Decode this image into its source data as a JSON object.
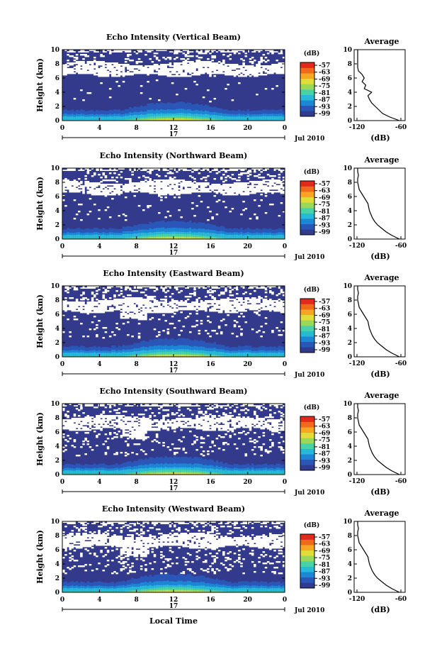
{
  "figure": {
    "x_axis_common_label": "Local Time",
    "date_label": "Jul 2010",
    "day_label": "17",
    "average_title": "Average",
    "average_xlabel": "(dB)",
    "colorbar_unit": "(dB)",
    "height_label": "Height (km)"
  },
  "colors": {
    "background_echo": "#333a8c",
    "no_data": "#ffffff",
    "colormap": [
      "#2f3c8f",
      "#2a56b8",
      "#1e86d6",
      "#28b9d8",
      "#49d1a8",
      "#9ad85a",
      "#e0dc3a",
      "#f6a623",
      "#f06a1c",
      "#e02a1c"
    ]
  },
  "chart_data": [
    {
      "type": "heatmap",
      "title": "Echo Intensity (Vertical Beam)",
      "ylabel": "Height (km)",
      "xlim": [
        0,
        24
      ],
      "ylim": [
        0,
        10
      ],
      "x_ticks": [
        "0",
        "4",
        "8",
        "12",
        "16",
        "20",
        "0"
      ],
      "y_ticks": [
        "0",
        "2",
        "4",
        "6",
        "8",
        "10"
      ],
      "colorbar": {
        "unit": "(dB)",
        "ticks": [
          "-57",
          "-63",
          "-69",
          "-75",
          "-81",
          "-87",
          "-93",
          "-99"
        ]
      },
      "profile": {
        "title": "Average",
        "xlabel": "(dB)",
        "x_ticks": [
          "-120",
          "-60"
        ],
        "xlim": [
          -120,
          -60
        ],
        "height": [
          0,
          0.5,
          1,
          1.5,
          2,
          2.5,
          3,
          3.5,
          4,
          4.5,
          5,
          5.5,
          6,
          6.5,
          7,
          7.5,
          8,
          8.5,
          9,
          9.5,
          10
        ],
        "value": [
          -62,
          -75,
          -85,
          -90,
          -95,
          -100,
          -103,
          -105,
          -100,
          -110,
          -108,
          -113,
          -110,
          -113,
          -118,
          -119,
          -119,
          -119,
          -119,
          -119,
          -119
        ]
      }
    },
    {
      "type": "heatmap",
      "title": "Echo Intensity (Northward Beam)",
      "ylabel": "Height (km)",
      "xlim": [
        0,
        24
      ],
      "ylim": [
        0,
        10
      ],
      "x_ticks": [
        "0",
        "4",
        "8",
        "12",
        "16",
        "20",
        "0"
      ],
      "y_ticks": [
        "0",
        "2",
        "4",
        "6",
        "8",
        "10"
      ],
      "colorbar": {
        "unit": "(dB)",
        "ticks": [
          "-57",
          "-63",
          "-69",
          "-75",
          "-81",
          "-87",
          "-93",
          "-99"
        ]
      },
      "profile": {
        "title": "Average",
        "xlabel": "(dB)",
        "x_ticks": [
          "-120",
          "-60"
        ],
        "xlim": [
          -120,
          -60
        ],
        "height": [
          0,
          0.5,
          1,
          1.5,
          2,
          2.5,
          3,
          3.5,
          4,
          4.5,
          5,
          5.5,
          6,
          6.5,
          7,
          7.5,
          8,
          8.5,
          9,
          9.5,
          10
        ],
        "value": [
          -62,
          -72,
          -80,
          -86,
          -92,
          -96,
          -99,
          -101,
          -103,
          -104,
          -105,
          -108,
          -111,
          -114,
          -117,
          -118,
          -119,
          -119,
          -118,
          -119,
          -119
        ]
      }
    },
    {
      "type": "heatmap",
      "title": "Echo Intensity (Eastward Beam)",
      "ylabel": "Height (km)",
      "xlim": [
        0,
        24
      ],
      "ylim": [
        0,
        10
      ],
      "x_ticks": [
        "0",
        "4",
        "8",
        "12",
        "16",
        "20",
        "0"
      ],
      "y_ticks": [
        "0",
        "2",
        "4",
        "6",
        "8",
        "10"
      ],
      "colorbar": {
        "unit": "(dB)",
        "ticks": [
          "-57",
          "-63",
          "-69",
          "-75",
          "-81",
          "-87",
          "-93",
          "-99"
        ]
      },
      "profile": {
        "title": "Average",
        "xlabel": "(dB)",
        "x_ticks": [
          "-120",
          "-60"
        ],
        "xlim": [
          -120,
          -60
        ],
        "height": [
          0,
          0.5,
          1,
          1.5,
          2,
          2.5,
          3,
          3.5,
          4,
          4.5,
          5,
          5.5,
          6,
          6.5,
          7,
          7.5,
          8,
          8.5,
          9,
          9.5,
          10
        ],
        "value": [
          -62,
          -72,
          -80,
          -86,
          -92,
          -96,
          -99,
          -101,
          -103,
          -104,
          -105,
          -108,
          -111,
          -114,
          -117,
          -118,
          -119,
          -119,
          -118,
          -119,
          -119
        ]
      }
    },
    {
      "type": "heatmap",
      "title": "Echo Intensity (Southward Beam)",
      "ylabel": "Height (km)",
      "xlim": [
        0,
        24
      ],
      "ylim": [
        0,
        10
      ],
      "x_ticks": [
        "0",
        "4",
        "8",
        "12",
        "16",
        "20",
        "0"
      ],
      "y_ticks": [
        "0",
        "2",
        "4",
        "6",
        "8",
        "10"
      ],
      "colorbar": {
        "unit": "(dB)",
        "ticks": [
          "-57",
          "-63",
          "-69",
          "-75",
          "-81",
          "-87",
          "-93",
          "-99"
        ]
      },
      "profile": {
        "title": "Average",
        "xlabel": "(dB)",
        "x_ticks": [
          "-120",
          "-60"
        ],
        "xlim": [
          -120,
          -60
        ],
        "height": [
          0,
          0.5,
          1,
          1.5,
          2,
          2.5,
          3,
          3.5,
          4,
          4.5,
          5,
          5.5,
          6,
          6.5,
          7,
          7.5,
          8,
          8.5,
          9,
          9.5,
          10
        ],
        "value": [
          -62,
          -72,
          -80,
          -86,
          -92,
          -96,
          -99,
          -101,
          -103,
          -104,
          -105,
          -108,
          -111,
          -114,
          -117,
          -118,
          -119,
          -119,
          -118,
          -119,
          -119
        ]
      }
    },
    {
      "type": "heatmap",
      "title": "Echo Intensity (Westward Beam)",
      "ylabel": "Height (km)",
      "xlim": [
        0,
        24
      ],
      "ylim": [
        0,
        10
      ],
      "x_ticks": [
        "0",
        "4",
        "8",
        "12",
        "16",
        "20",
        "0"
      ],
      "y_ticks": [
        "0",
        "2",
        "4",
        "6",
        "8",
        "10"
      ],
      "colorbar": {
        "unit": "(dB)",
        "ticks": [
          "-57",
          "-63",
          "-69",
          "-75",
          "-81",
          "-87",
          "-93",
          "-99"
        ]
      },
      "profile": {
        "title": "Average",
        "xlabel": "(dB)",
        "x_ticks": [
          "-120",
          "-60"
        ],
        "xlim": [
          -120,
          -60
        ],
        "height": [
          0,
          0.5,
          1,
          1.5,
          2,
          2.5,
          3,
          3.5,
          4,
          4.5,
          5,
          5.5,
          6,
          6.5,
          7,
          7.5,
          8,
          8.5,
          9,
          9.5,
          10
        ],
        "value": [
          -62,
          -72,
          -80,
          -86,
          -92,
          -96,
          -99,
          -101,
          -103,
          -104,
          -105,
          -108,
          -111,
          -114,
          -117,
          -118,
          -119,
          -119,
          -118,
          -119,
          -119
        ]
      }
    }
  ]
}
